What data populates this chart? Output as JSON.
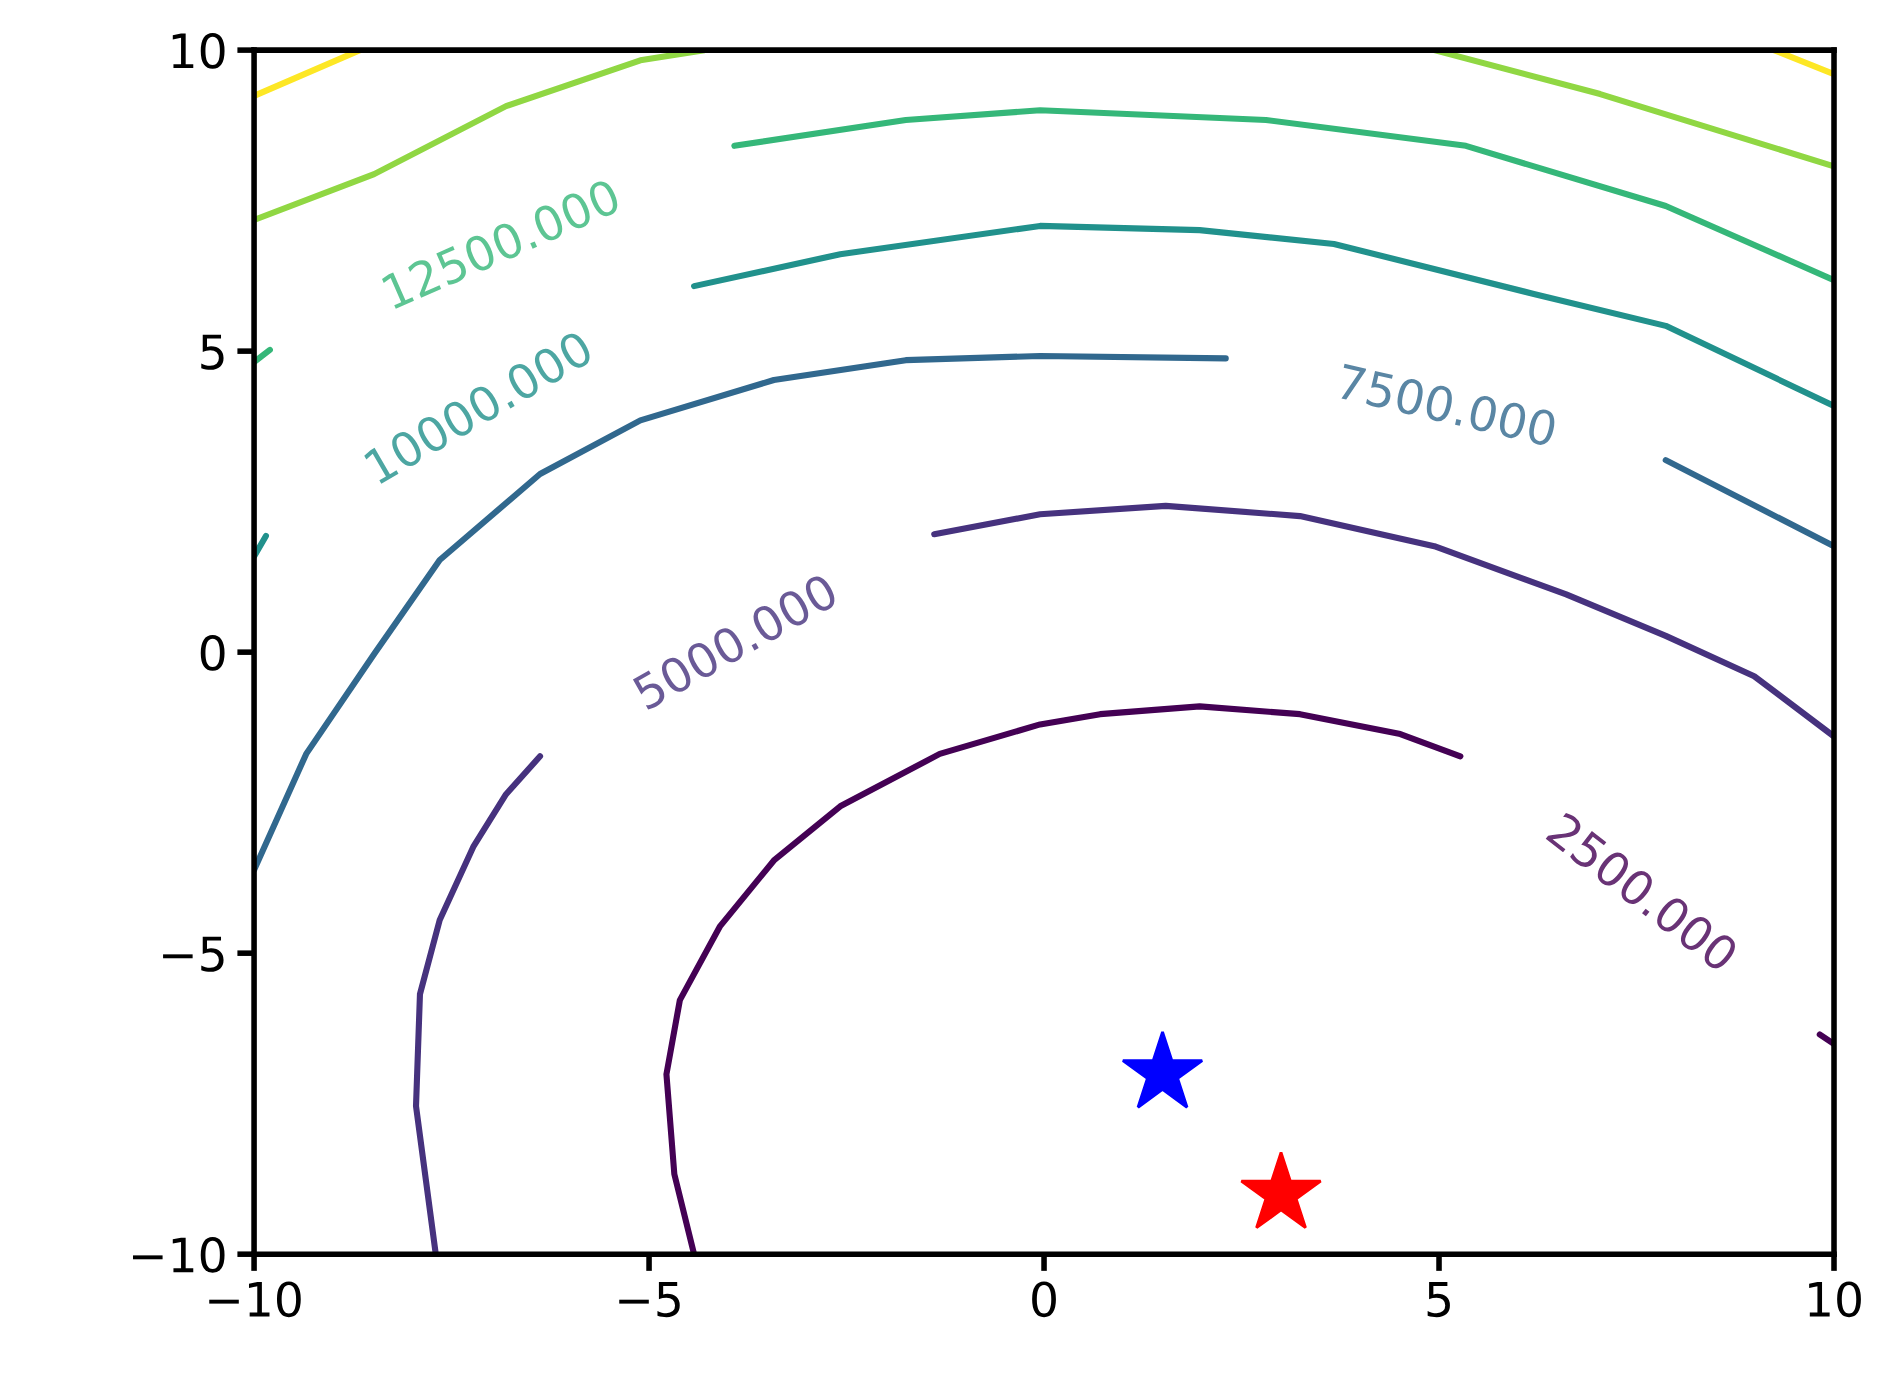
{
  "chart_data": {
    "type": "line",
    "xlim": [
      -10,
      10
    ],
    "ylim": [
      -10,
      10
    ],
    "xticks": [
      {
        "value": -10,
        "label": "−10"
      },
      {
        "value": -5,
        "label": "−5"
      },
      0,
      5,
      10
    ],
    "yticks": [
      {
        "value": -10,
        "label": "−10"
      },
      {
        "value": -5,
        "label": "−5"
      },
      0,
      5,
      10
    ],
    "series": [
      {
        "name": "2500.000",
        "color": "#440154",
        "x": [
          -4.43,
          -4.68,
          -4.78,
          -4.61,
          -4.1,
          -3.42,
          -2.58,
          -1.32,
          -0.05,
          0.71,
          1.97,
          3.24,
          4.51,
          5.27,
          7.5,
          9.82,
          10
        ],
        "values": [
          -10,
          -8.67,
          -7.01,
          -5.78,
          -4.55,
          -3.46,
          -2.56,
          -1.69,
          -1.2,
          -1.03,
          -0.9,
          -1.03,
          -1.36,
          -1.73,
          null,
          -6.35,
          -6.51
        ]
      },
      {
        "name": "5000.000",
        "color": "#46327e",
        "x": [
          -7.7,
          -7.95,
          -7.9,
          -7.65,
          -7.22,
          -6.81,
          -6.38,
          -3.9,
          -1.39,
          -0.05,
          1.54,
          3.24,
          4.94,
          6.61,
          7.87,
          8.99,
          10
        ],
        "values": [
          -10,
          -7.54,
          -5.68,
          -4.45,
          -3.22,
          -2.36,
          -1.73,
          null,
          1.96,
          2.29,
          2.43,
          2.26,
          1.76,
          0.96,
          0.27,
          -0.4,
          -1.4
        ]
      },
      {
        "name": "7500.000",
        "color": "#31688e",
        "x": [
          -10,
          -9.34,
          -8.48,
          -7.65,
          -6.38,
          -5.11,
          -3.42,
          -1.75,
          -0.05,
          2.3,
          5.1,
          7.87,
          10
        ],
        "values": [
          -3.62,
          -1.69,
          -0.03,
          1.53,
          2.96,
          3.85,
          4.52,
          4.85,
          4.92,
          4.88,
          null,
          3.19,
          1.76
        ]
      },
      {
        "name": "10000.000",
        "color": "#21918c",
        "x": [
          -10,
          -9.85,
          -7.1,
          -4.43,
          -2.58,
          -0.05,
          1.97,
          3.67,
          6.2,
          7.87,
          10
        ],
        "values": [
          1.59,
          1.93,
          null,
          6.08,
          6.61,
          7.08,
          7.01,
          6.78,
          5.95,
          5.42,
          4.09
        ]
      },
      {
        "name": "12500.000",
        "color": "#35b779",
        "x": [
          -10,
          -9.8,
          -6.9,
          -3.92,
          -1.75,
          -0.05,
          2.81,
          5.34,
          7.87,
          10
        ],
        "values": [
          4.82,
          5.02,
          null,
          8.41,
          8.84,
          9.0,
          8.84,
          8.41,
          7.41,
          6.18
        ]
      },
      {
        "color": "#90d743",
        "x": [
          -10,
          -8.48,
          -6.81,
          -5.11,
          -4.3,
          0,
          4.94,
          7.04,
          10
        ],
        "values": [
          7.18,
          7.94,
          9.07,
          9.83,
          10,
          null,
          10,
          9.27,
          8.07
        ]
      },
      {
        "color": "#fde725",
        "x": [
          -10,
          -8.66,
          0,
          9.24,
          10
        ],
        "values": [
          9.24,
          10,
          null,
          10,
          9.6
        ]
      },
      {
        "type": "scatter",
        "marker": "star",
        "color": "#0000ff",
        "x": [
          1.5
        ],
        "values": [
          -7
        ]
      },
      {
        "type": "scatter",
        "marker": "star",
        "color": "#ff0000",
        "x": [
          3
        ],
        "values": [
          -9
        ]
      }
    ]
  }
}
